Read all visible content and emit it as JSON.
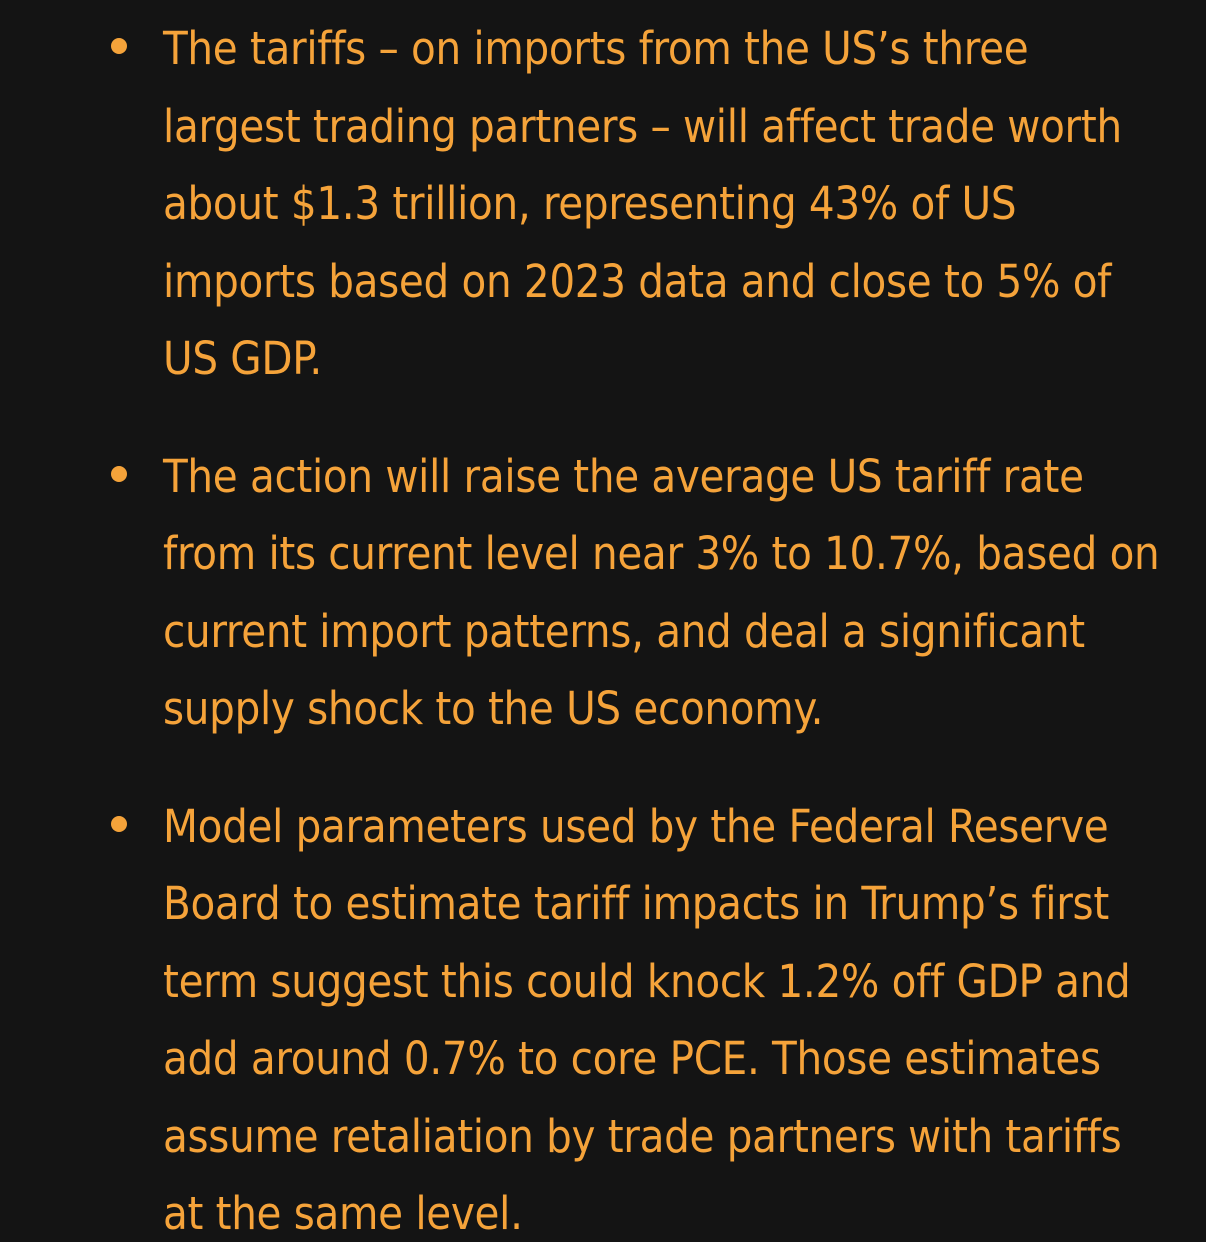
{
  "colors": {
    "background": "#141414",
    "text": "#F5A33A",
    "bullet": "#F5A33A"
  },
  "bullets": [
    {
      "text": "The tariffs – on imports from the US’s three largest trading partners – will affect trade worth about $1.3 trillion, representing 43% of US imports based on 2023 data and close to 5% of US GDP."
    },
    {
      "text": "The action will raise the average US tariff rate from its current level near 3% to 10.7%, based on current import patterns, and deal a significant supply shock to the US economy."
    },
    {
      "text": "Model parameters used by the Federal Reserve Board to estimate tariff impacts in Trump’s first term suggest this could knock 1.2% off GDP and add around 0.7% to core PCE. Those estimates assume retaliation by trade partners with tariffs at the same level."
    }
  ]
}
